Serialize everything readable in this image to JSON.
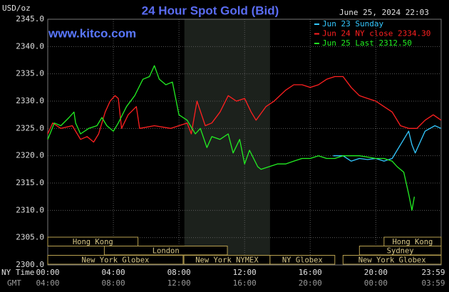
{
  "chart_data": {
    "type": "line",
    "title": "24 Hour Spot Gold (Bid)",
    "y_unit": "USD/oz",
    "timestamp": "June 25, 2024 22:03",
    "watermark": "www.kitco.com",
    "x_row_label": "NY Time",
    "x2_row_label": "GMT",
    "xlim": [
      0,
      23.983
    ],
    "xticks": [
      {
        "value": 0,
        "label": "00:00"
      },
      {
        "value": 4,
        "label": "04:00"
      },
      {
        "value": 8,
        "label": "08:00"
      },
      {
        "value": 12,
        "label": "12:00"
      },
      {
        "value": 16,
        "label": "16:00"
      },
      {
        "value": 20,
        "label": "20:00"
      },
      {
        "value": 23.983,
        "label": "23:59"
      }
    ],
    "x2_tick_labels": [
      "04:00",
      "08:00",
      "12:00",
      "16:00",
      "20:00",
      "00:00",
      "03:59"
    ],
    "ylim": [
      2300,
      2345
    ],
    "yticks": [
      {
        "value": 2300,
        "label": "2300.0"
      },
      {
        "value": 2305,
        "label": "2305.0"
      },
      {
        "value": 2310,
        "label": "2310.0"
      },
      {
        "value": 2315,
        "label": "2315.0"
      },
      {
        "value": 2320,
        "label": "2320.0"
      },
      {
        "value": 2325,
        "label": "2325.0"
      },
      {
        "value": 2330,
        "label": "2330.0"
      },
      {
        "value": 2335,
        "label": "2335.0"
      },
      {
        "value": 2340,
        "label": "2340.0"
      },
      {
        "value": 2345,
        "label": "2345.0"
      }
    ],
    "grid": true,
    "legend": "top-right",
    "shaded_region": [
      8.33,
      13.55
    ],
    "sessions": [
      {
        "name": "Hong Kong",
        "row": 0,
        "start": 0,
        "end": 5.5
      },
      {
        "name": "Hong Kong",
        "row": 0,
        "start": 20.5,
        "end": 23.983
      },
      {
        "name": "London",
        "row": 1,
        "start": 3.45,
        "end": 10.95
      },
      {
        "name": "Sydney",
        "row": 1,
        "start": 19,
        "end": 23.983
      },
      {
        "name": "New York Globex",
        "row": 2,
        "start": 0,
        "end": 8.25
      },
      {
        "name": "New York NYMEX",
        "row": 2,
        "start": 8.3,
        "end": 13.55
      },
      {
        "name": "NY Globex",
        "row": 2,
        "start": 13.55,
        "end": 17.5
      },
      {
        "name": "New York Globex",
        "row": 2,
        "start": 18,
        "end": 23.983
      }
    ],
    "series": [
      {
        "name": "Jun 23 Sunday",
        "color": "#33c8ff",
        "x": [
          17.4,
          18.0,
          18.5,
          19.0,
          19.5,
          20.0,
          20.5,
          21.0,
          21.3,
          21.7,
          22.0,
          22.2,
          22.4,
          22.7,
          23.0,
          23.3,
          23.6,
          23.983
        ],
        "values": [
          2320,
          2320,
          2319,
          2319.5,
          2319.3,
          2319.5,
          2319,
          2319.5,
          2321,
          2323,
          2324.5,
          2322,
          2320.5,
          2322.5,
          2324.5,
          2325,
          2325.5,
          2325
        ]
      },
      {
        "name": "Jun 24 NY close 2334.30",
        "color": "#ff2020",
        "x": [
          0,
          0.3,
          0.8,
          1.5,
          2.0,
          2.4,
          2.8,
          3.1,
          3.5,
          3.8,
          4.1,
          4.3,
          4.5,
          4.9,
          5.4,
          5.6,
          6.5,
          7.5,
          8.5,
          8.75,
          9.1,
          9.6,
          10.0,
          10.5,
          11.0,
          11.5,
          12.0,
          12.4,
          12.7,
          13.3,
          13.8,
          14.5,
          15.0,
          15.5,
          16.0,
          16.5,
          17.0,
          17.5,
          18.0,
          18.5,
          19.0,
          19.5,
          20.0,
          20.5,
          21.0,
          21.5,
          22.0,
          22.5,
          23.0,
          23.5,
          23.983
        ],
        "values": [
          2324,
          2326,
          2325,
          2325.5,
          2323,
          2323.5,
          2322.5,
          2324,
          2328,
          2330,
          2331,
          2330.5,
          2325,
          2327.5,
          2329,
          2325,
          2325.5,
          2325,
          2326,
          2324,
          2330,
          2325.5,
          2326,
          2328,
          2331,
          2330,
          2330.5,
          2328,
          2326.5,
          2329,
          2330,
          2332,
          2333,
          2333,
          2332.5,
          2333,
          2334,
          2334.5,
          2334.5,
          2332.5,
          2331,
          2330.5,
          2330,
          2329,
          2328,
          2325.5,
          2325,
          2325,
          2326.5,
          2327.5,
          2326.5
        ]
      },
      {
        "name": "Jun 25 Last 2312.50",
        "color": "#22ee22",
        "x": [
          0,
          0.4,
          0.8,
          1.3,
          1.6,
          1.7,
          2.0,
          2.5,
          3.0,
          3.3,
          3.6,
          4.0,
          4.3,
          4.8,
          5.3,
          5.8,
          6.2,
          6.5,
          6.8,
          7.2,
          7.6,
          8.0,
          8.5,
          9.0,
          9.3,
          9.7,
          10.0,
          10.5,
          11.0,
          11.3,
          11.7,
          12.0,
          12.3,
          12.8,
          13.0,
          13.5,
          14.0,
          14.5,
          15.0,
          15.5,
          16.0,
          16.5,
          17.0,
          17.5,
          18.0,
          19.0,
          20.0,
          20.5,
          21.0,
          21.3,
          21.7,
          22.0,
          22.2,
          22.35
        ],
        "values": [
          2323,
          2326,
          2325.5,
          2327,
          2328,
          2326,
          2324,
          2325,
          2325.5,
          2327,
          2325.5,
          2324.5,
          2326,
          2329,
          2331,
          2334,
          2334.5,
          2336.5,
          2334,
          2333,
          2333.5,
          2327.5,
          2326.5,
          2324,
          2325,
          2321.5,
          2323.5,
          2323,
          2324,
          2320.5,
          2323,
          2318.5,
          2321,
          2318,
          2317.5,
          2318,
          2318.5,
          2318.5,
          2319,
          2319.5,
          2319.5,
          2320,
          2319.5,
          2319.5,
          2320,
          2320,
          2319.5,
          2319.5,
          2319,
          2318,
          2317,
          2313,
          2310,
          2312.5
        ]
      }
    ]
  }
}
